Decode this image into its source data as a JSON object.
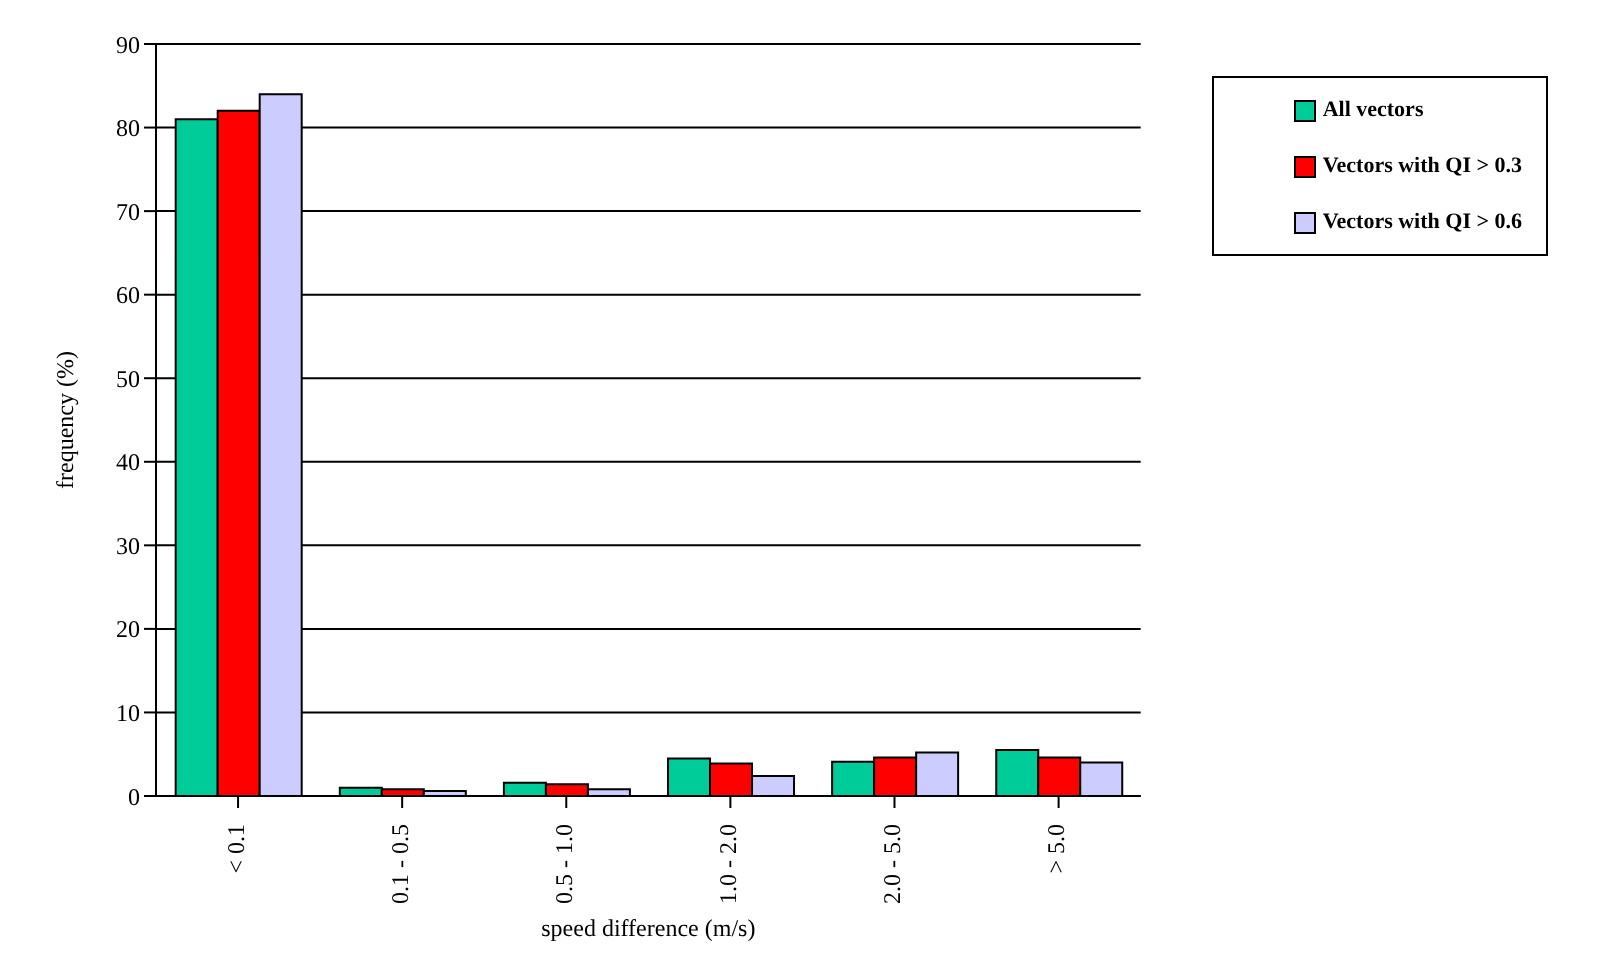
{
  "chart_data": {
    "type": "bar",
    "xlabel": "speed difference  (m/s)",
    "ylabel": "frequency (%)",
    "categories": [
      "< 0.1",
      "0.1 - 0.5",
      "0.5 - 1.0",
      "1.0 - 2.0",
      "2.0 - 5.0",
      "> 5.0"
    ],
    "series": [
      {
        "name": "All vectors",
        "color": "#00cc99",
        "values": [
          81,
          1,
          1.6,
          4.5,
          4.1,
          5.5
        ]
      },
      {
        "name": "Vectors with QI > 0.3",
        "color": "#ff0000",
        "values": [
          82,
          0.8,
          1.4,
          3.9,
          4.6,
          4.6
        ]
      },
      {
        "name": "Vectors with QI > 0.6",
        "color": "#ccccff",
        "values": [
          84,
          0.6,
          0.8,
          2.4,
          5.2,
          4.0
        ]
      }
    ],
    "ylim": [
      0,
      90
    ],
    "yticks": [
      0,
      10,
      20,
      30,
      40,
      50,
      60,
      70,
      80,
      90
    ],
    "grid": "y",
    "legend": "top right"
  }
}
